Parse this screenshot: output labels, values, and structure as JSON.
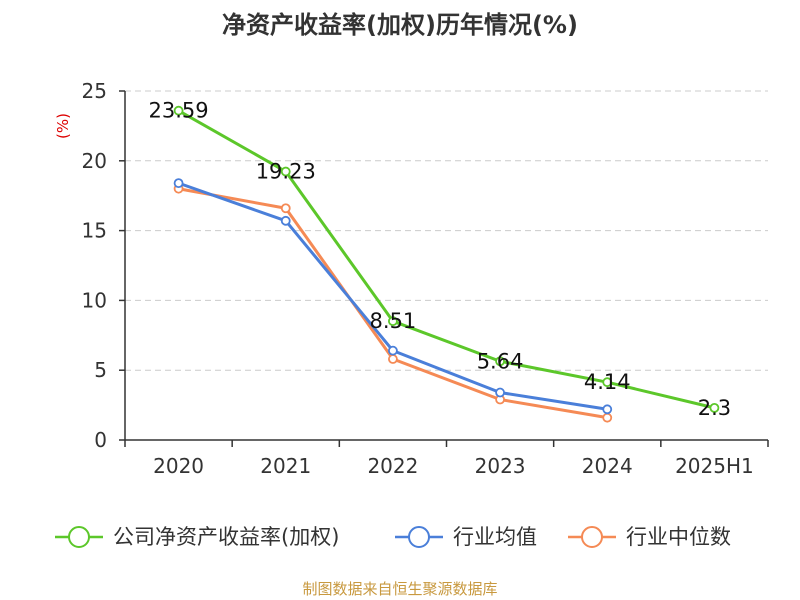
{
  "chart_data": {
    "type": "line",
    "title": "净资产收益率(加权)历年情况(%)",
    "ylabel": "(%)",
    "categories": [
      "2020",
      "2021",
      "2022",
      "2023",
      "2024",
      "2025H1"
    ],
    "ylim": [
      0,
      25
    ],
    "yticks": [
      0,
      5,
      10,
      15,
      20,
      25
    ],
    "grid": true,
    "legend_position": "bottom",
    "series": [
      {
        "name": "公司净资产收益率(加权)",
        "color": "#5cc72a",
        "values": [
          23.59,
          19.23,
          8.51,
          5.64,
          4.14,
          2.3
        ],
        "labels": [
          "23.59",
          "19.23",
          "8.51",
          "5.64",
          "4.14",
          "2.3"
        ]
      },
      {
        "name": "行业均值",
        "color": "#4a7fd9",
        "values": [
          18.4,
          15.7,
          6.4,
          3.4,
          2.2,
          null
        ]
      },
      {
        "name": "行业中位数",
        "color": "#f58a55",
        "values": [
          18.0,
          16.6,
          5.8,
          2.9,
          1.6,
          null
        ]
      }
    ]
  },
  "footer": {
    "source": "制图数据来自恒生聚源数据库"
  },
  "colors": {
    "axis": "#333333",
    "grid": "#cccccc",
    "ylabel": "#dd0000",
    "source": "#c8993f"
  }
}
